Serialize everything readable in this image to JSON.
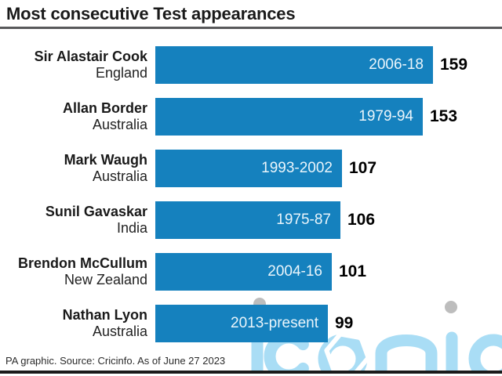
{
  "title": "Most consecutive Test appearances",
  "footer": "PA graphic. Source: Cricinfo. As of June 27 2023",
  "watermark": {
    "text": "iconic",
    "letter_color": "#a9ddf5",
    "dot_color": "#bdbdbd",
    "hexagon_color": "#ffffff"
  },
  "colors": {
    "bar": "#1581be",
    "bar_label": "#eaf5fb",
    "title_rule": "#58595b",
    "bottom_rule": "#1a1a1a"
  },
  "rows": [
    {
      "name": "Sir Alastair Cook",
      "country": "England",
      "period": "2006-18",
      "value": 159
    },
    {
      "name": "Allan Border",
      "country": "Australia",
      "period": "1979-94",
      "value": 153
    },
    {
      "name": "Mark Waugh",
      "country": "Australia",
      "period": "1993-2002",
      "value": 107
    },
    {
      "name": "Sunil Gavaskar",
      "country": "India",
      "period": "1975-87",
      "value": 106
    },
    {
      "name": "Brendon McCullum",
      "country": "New Zealand",
      "period": "2004-16",
      "value": 101
    },
    {
      "name": "Nathan Lyon",
      "country": "Australia",
      "period": "2013-present",
      "value": 99
    }
  ],
  "chart_data": {
    "type": "bar",
    "orientation": "horizontal",
    "title": "Most consecutive Test appearances",
    "categories": [
      "Sir Alastair Cook (England)",
      "Allan Border (Australia)",
      "Mark Waugh (Australia)",
      "Sunil Gavaskar (India)",
      "Brendon McCullum (New Zealand)",
      "Nathan Lyon (Australia)"
    ],
    "values": [
      159,
      153,
      107,
      106,
      101,
      99
    ],
    "bar_labels": [
      "2006-18",
      "1979-94",
      "1993-2002",
      "1975-87",
      "2004-16",
      "2013-present"
    ],
    "xlim": [
      0,
      159
    ],
    "grid": false,
    "legend": false,
    "source": "PA graphic. Source: Cricinfo. As of June 27 2023"
  }
}
